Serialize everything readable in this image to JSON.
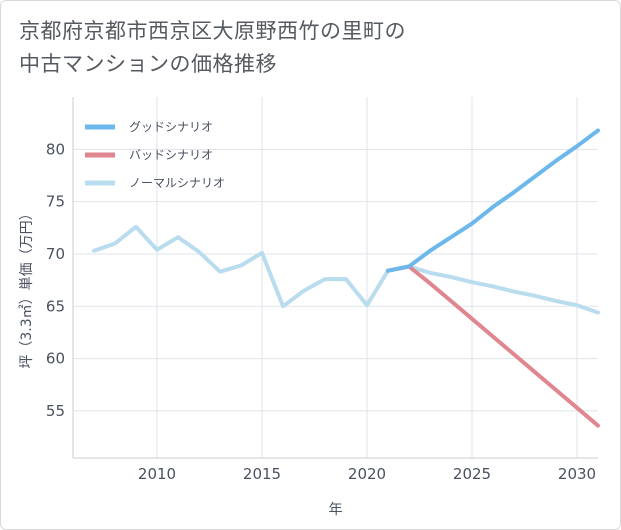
{
  "title": {
    "line1": "京都府京都市西京区大原野西竹の里町の",
    "line2": "中古マンションの価格推移"
  },
  "chart_data": {
    "type": "line",
    "xlabel": "年",
    "ylabel": "坪（3.3㎡）単価（万円）",
    "xlim": [
      2006,
      2031
    ],
    "ylim": [
      50.5,
      85
    ],
    "x_ticks": [
      "2010",
      "2015",
      "2020",
      "2025",
      "2030"
    ],
    "y_ticks": [
      "55",
      "60",
      "65",
      "70",
      "75",
      "80"
    ],
    "grid": true,
    "legend_position": "top-left",
    "series": [
      {
        "name": "グッドシナリオ",
        "color": "#6cb8ec",
        "x": [
          2021,
          2022,
          2023,
          2024,
          2025,
          2026,
          2027,
          2028,
          2029,
          2030,
          2031
        ],
        "values": [
          68.4,
          68.8,
          70.3,
          71.6,
          72.9,
          74.5,
          75.9,
          77.4,
          78.9,
          80.3,
          81.8
        ]
      },
      {
        "name": "バッドシナリオ",
        "color": "#e0868f",
        "x": [
          2021,
          2022,
          2023,
          2024,
          2025,
          2026,
          2027,
          2028,
          2029,
          2030,
          2031
        ],
        "values": [
          68.4,
          68.8,
          67.2,
          65.5,
          63.8,
          62.1,
          60.4,
          58.7,
          57.0,
          55.3,
          53.6
        ]
      },
      {
        "name": "ノーマルシナリオ",
        "color": "#b9dcee",
        "x": [
          2007,
          2008,
          2009,
          2010,
          2011,
          2012,
          2013,
          2014,
          2015,
          2016,
          2017,
          2018,
          2019,
          2020,
          2021,
          2022,
          2023,
          2024,
          2025,
          2026,
          2027,
          2028,
          2029,
          2030,
          2031
        ],
        "values": [
          70.3,
          71.0,
          72.6,
          70.4,
          71.6,
          70.2,
          68.3,
          68.9,
          70.1,
          65.0,
          66.5,
          67.6,
          67.6,
          65.1,
          68.4,
          68.8,
          68.2,
          67.8,
          67.3,
          66.9,
          66.4,
          66.0,
          65.5,
          65.1,
          64.4
        ]
      }
    ]
  }
}
